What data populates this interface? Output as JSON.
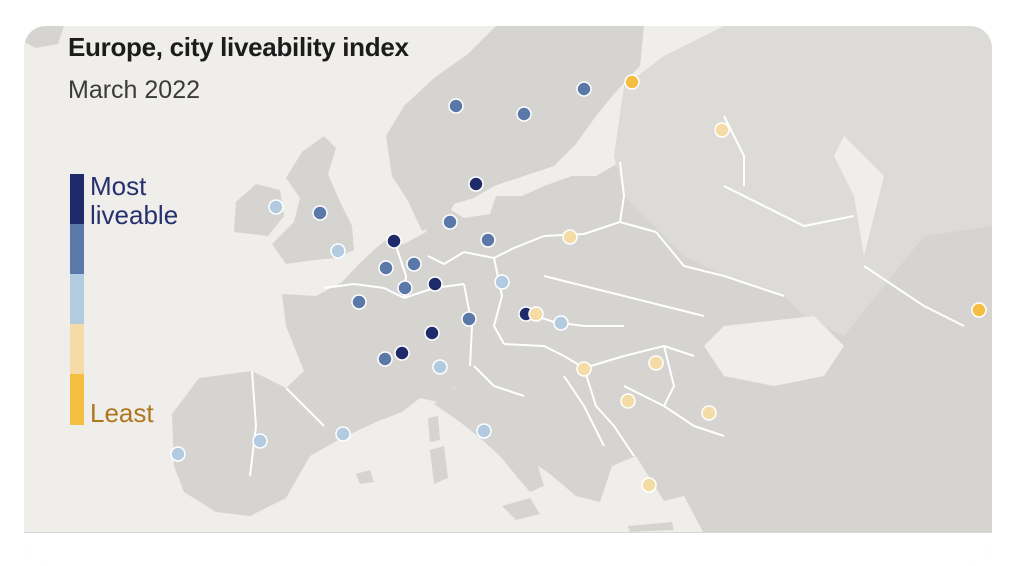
{
  "title": "Europe, city liveability index",
  "subtitle": "March 2022",
  "legend": {
    "top_label_line1": "Most",
    "top_label_line2": "liveable",
    "bottom_label": "Least",
    "categories": [
      {
        "level": 1,
        "color": "#1f2a6b"
      },
      {
        "level": 2,
        "color": "#5b79a8"
      },
      {
        "level": 3,
        "color": "#b3cbe0"
      },
      {
        "level": 4,
        "color": "#f5dca6"
      },
      {
        "level": 5,
        "color": "#f4be42"
      }
    ],
    "most_color": "#26306e",
    "least_color": "#b0761e"
  },
  "colors": {
    "sea": "#efeeea",
    "land": "#d5d4d1",
    "russia": "#dcdbd8",
    "borders": "#ffffff",
    "level1": "#1f2a6b",
    "level2": "#5b79a8",
    "level3": "#b3cbe0",
    "level4": "#f5dca6",
    "level5": "#f4be42"
  }
}
